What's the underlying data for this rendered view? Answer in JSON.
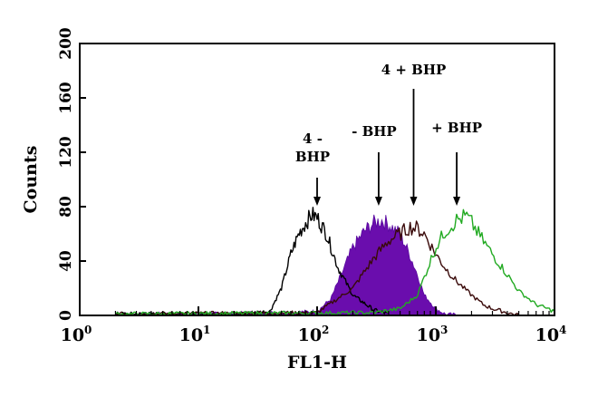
{
  "chart_data": {
    "type": "area",
    "xlabel": "FL1-H",
    "ylabel": "Counts",
    "x_scale": "log",
    "xlim": [
      1,
      10000
    ],
    "ylim": [
      0,
      200
    ],
    "x_ticks": [
      {
        "value": 1,
        "base": "10",
        "exp": "0"
      },
      {
        "value": 10,
        "base": "10",
        "exp": "1"
      },
      {
        "value": 100,
        "base": "10",
        "exp": "2"
      },
      {
        "value": 1000,
        "base": "10",
        "exp": "3"
      },
      {
        "value": 10000,
        "base": "10",
        "exp": "4"
      }
    ],
    "y_ticks": [
      "0",
      "40",
      "80",
      "120",
      "160",
      "200"
    ],
    "grid": false,
    "series": [
      {
        "color": "#6a0dad",
        "style": "filled",
        "x": [
          2,
          10,
          50,
          100,
          130,
          160,
          200,
          250,
          300,
          350,
          400,
          500,
          600,
          700,
          800,
          1000,
          1200,
          1600
        ],
        "y": [
          1,
          1,
          2,
          3,
          12,
          30,
          50,
          62,
          68,
          70,
          67,
          60,
          45,
          30,
          15,
          5,
          1,
          0
        ]
      },
      {
        "color": "#000000",
        "style": "outline",
        "x": [
          2,
          20,
          40,
          50,
          60,
          70,
          80,
          90,
          100,
          120,
          150,
          200,
          300,
          400
        ],
        "y": [
          1,
          1,
          3,
          20,
          45,
          60,
          68,
          74,
          72,
          60,
          35,
          15,
          4,
          1
        ]
      },
      {
        "color": "#3a0a0a",
        "style": "outline",
        "x": [
          2,
          100,
          200,
          300,
          400,
          500,
          600,
          700,
          800,
          1000,
          1200,
          1500,
          2000,
          2500,
          3000,
          4000,
          5000
        ],
        "y": [
          1,
          2,
          20,
          42,
          55,
          60,
          65,
          64,
          60,
          45,
          35,
          25,
          15,
          8,
          5,
          2,
          0
        ]
      },
      {
        "color": "#22aa22",
        "style": "outline",
        "x": [
          2,
          300,
          500,
          700,
          900,
          1000,
          1200,
          1500,
          1800,
          2000,
          2500,
          3000,
          4000,
          5000,
          7000,
          10000
        ],
        "y": [
          1,
          2,
          5,
          15,
          40,
          50,
          62,
          70,
          73,
          68,
          55,
          45,
          30,
          18,
          8,
          3
        ]
      }
    ],
    "annotations": [
      {
        "lines": [
          "4 -",
          "BHP"
        ],
        "x": 100,
        "y": 80
      },
      {
        "lines": [
          "- BHP"
        ],
        "x": 330,
        "y": 80
      },
      {
        "lines": [
          "4 + BHP"
        ],
        "x": 650,
        "y": 80
      },
      {
        "lines": [
          "+ BHP"
        ],
        "x": 1500,
        "y": 80
      }
    ]
  }
}
